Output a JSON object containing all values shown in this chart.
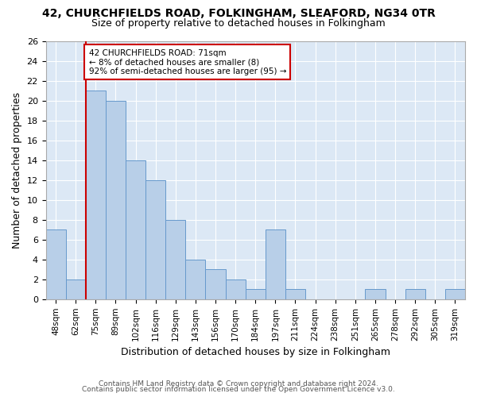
{
  "title_line1": "42, CHURCHFIELDS ROAD, FOLKINGHAM, SLEAFORD, NG34 0TR",
  "title_line2": "Size of property relative to detached houses in Folkingham",
  "xlabel": "Distribution of detached houses by size in Folkingham",
  "ylabel": "Number of detached properties",
  "categories": [
    "48sqm",
    "62sqm",
    "75sqm",
    "89sqm",
    "102sqm",
    "116sqm",
    "129sqm",
    "143sqm",
    "156sqm",
    "170sqm",
    "184sqm",
    "197sqm",
    "211sqm",
    "224sqm",
    "238sqm",
    "251sqm",
    "265sqm",
    "278sqm",
    "292sqm",
    "305sqm",
    "319sqm"
  ],
  "values": [
    7,
    2,
    21,
    20,
    14,
    12,
    8,
    4,
    3,
    2,
    1,
    7,
    1,
    0,
    0,
    0,
    1,
    0,
    1,
    0,
    1
  ],
  "bar_color": "#b8cfe8",
  "bar_edge_color": "#6699cc",
  "background_color": "#dce8f5",
  "grid_color": "#ffffff",
  "property_line_x": 1.5,
  "annotation_text": "42 CHURCHFIELDS ROAD: 71sqm\n← 8% of detached houses are smaller (8)\n92% of semi-detached houses are larger (95) →",
  "annotation_box_color": "#ffffff",
  "annotation_box_edge_color": "#cc0000",
  "property_line_color": "#cc0000",
  "ylim": [
    0,
    26
  ],
  "yticks": [
    0,
    2,
    4,
    6,
    8,
    10,
    12,
    14,
    16,
    18,
    20,
    22,
    24,
    26
  ],
  "footer1": "Contains HM Land Registry data © Crown copyright and database right 2024.",
  "footer2": "Contains public sector information licensed under the Open Government Licence v3.0."
}
